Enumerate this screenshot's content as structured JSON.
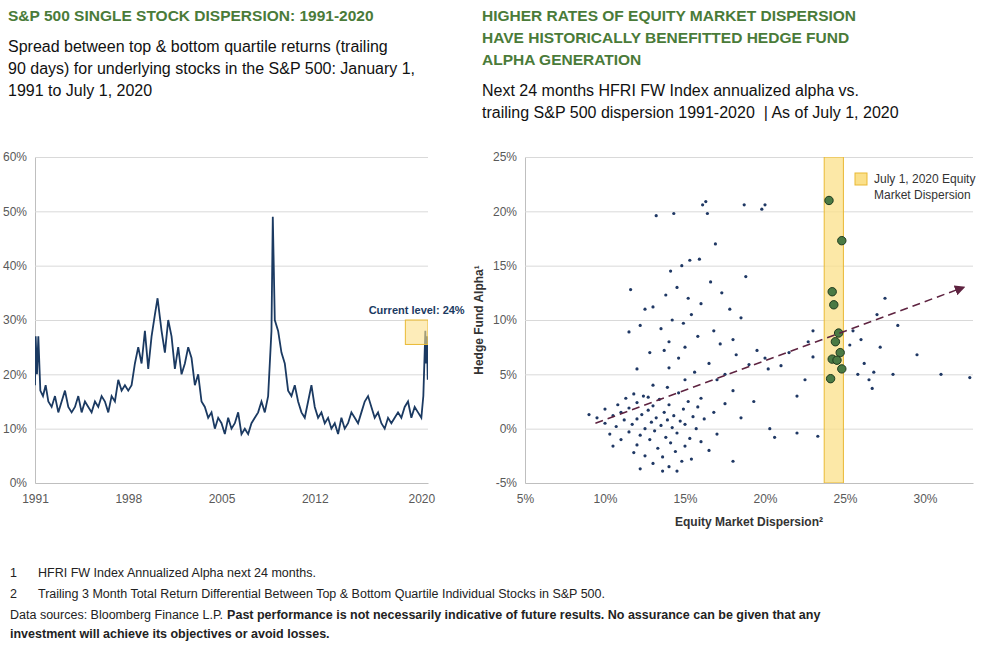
{
  "chart_data": [
    {
      "type": "line",
      "title": [
        "S&P 500 SINGLE STOCK DISPERSION: 1991-2020"
      ],
      "subtitle": [
        "Spread between top & bottom quartile returns (trailing",
        "90 days) for underlying stocks in the S&P 500: January 1,",
        "1991 to July 1, 2020"
      ],
      "color": "#1b3a62",
      "grid": true,
      "xlim": [
        1991,
        2020.5
      ],
      "xticks": [
        1991,
        1998,
        2005,
        2012,
        2020
      ],
      "ylim": [
        0,
        60
      ],
      "yticks": [
        {
          "value": 0,
          "label": "0%"
        },
        {
          "value": 10,
          "label": "10%"
        },
        {
          "value": 20,
          "label": "20%"
        },
        {
          "value": 30,
          "label": "30%"
        },
        {
          "value": 40,
          "label": "40%"
        },
        {
          "value": 50,
          "label": "50%"
        },
        {
          "value": 60,
          "label": "60%"
        }
      ],
      "x": [
        1991,
        1991.05,
        1991.15,
        1991.25,
        1991.4,
        1991.6,
        1991.8,
        1992,
        1992.25,
        1992.5,
        1992.75,
        1993,
        1993.25,
        1993.5,
        1993.75,
        1994,
        1994.25,
        1994.5,
        1994.75,
        1995,
        1995.25,
        1995.5,
        1995.75,
        1996,
        1996.25,
        1996.5,
        1996.75,
        1997,
        1997.25,
        1997.5,
        1997.75,
        1998,
        1998.25,
        1998.5,
        1998.75,
        1999,
        1999.25,
        1999.5,
        1999.75,
        2000,
        2000.2,
        2000.5,
        2000.75,
        2001,
        2001.25,
        2001.5,
        2001.75,
        2002,
        2002.25,
        2002.5,
        2002.75,
        2003,
        2003.25,
        2003.5,
        2003.75,
        2004,
        2004.25,
        2004.5,
        2004.75,
        2005,
        2005.25,
        2005.5,
        2005.75,
        2006,
        2006.25,
        2006.5,
        2006.75,
        2007,
        2007.25,
        2007.5,
        2007.75,
        2008,
        2008.25,
        2008.5,
        2008.75,
        2008.85,
        2009,
        2009.25,
        2009.5,
        2009.75,
        2010,
        2010.25,
        2010.5,
        2010.75,
        2011,
        2011.25,
        2011.5,
        2011.75,
        2012,
        2012.25,
        2012.5,
        2012.75,
        2013,
        2013.25,
        2013.5,
        2013.75,
        2014,
        2014.25,
        2014.5,
        2014.75,
        2015,
        2015.25,
        2015.5,
        2015.75,
        2016,
        2016.25,
        2016.5,
        2016.75,
        2017,
        2017.25,
        2017.5,
        2017.75,
        2018,
        2018.25,
        2018.5,
        2018.75,
        2019,
        2019.25,
        2019.5,
        2019.75,
        2020,
        2020.15,
        2020.3,
        2020.35,
        2020.42,
        2020.48,
        2020.5
      ],
      "values": [
        18,
        27,
        20,
        27,
        17,
        16,
        18,
        15,
        14,
        16,
        13,
        15,
        17,
        14,
        13,
        14,
        16,
        13,
        15,
        14,
        13,
        15,
        14,
        16,
        15,
        13,
        16,
        15,
        19,
        17,
        18,
        17,
        18,
        22,
        25,
        22,
        28,
        21,
        27,
        31,
        34,
        28,
        24,
        30,
        27,
        21,
        25,
        20,
        22,
        25,
        23,
        18,
        20,
        15,
        14,
        12,
        13,
        10,
        12,
        11,
        9,
        12,
        10,
        11,
        13,
        9,
        10,
        9,
        11,
        12,
        13,
        15,
        13,
        16,
        28,
        49,
        30,
        28,
        24,
        22,
        17,
        16,
        18,
        15,
        13,
        12,
        15,
        18,
        14,
        12,
        13,
        11,
        12,
        10,
        11,
        9,
        12,
        10,
        11,
        13,
        12,
        11,
        13,
        15,
        16,
        14,
        12,
        13,
        11,
        10,
        12,
        11,
        12,
        13,
        12,
        14,
        15,
        12,
        14,
        13,
        12,
        16,
        28,
        22,
        27,
        19,
        24
      ],
      "highlight": {
        "x": [
          2018.8,
          2020.5
        ],
        "y": [
          25.5,
          30
        ],
        "color": "#fbe08a"
      },
      "annotation": "Current level: 24%"
    },
    {
      "type": "scatter",
      "title": [
        "HIGHER RATES OF EQUITY MARKET DISPERSION",
        "HAVE HISTORICALLY BENEFITTED HEDGE FUND",
        "ALPHA GENERATION"
      ],
      "subtitle": [
        "Next 24 months HFRI FW Index annualized alpha vs.",
        "trailing S&P 500 dispersion 1991-2020  | As of July 1, 2020"
      ],
      "x_label": "Equity Market Dispersion²",
      "y_label": "Hedge Fund Alpha¹",
      "grid": true,
      "legend": "top-right",
      "xlim": [
        5,
        33
      ],
      "xticks": [
        {
          "value": 5,
          "label": "5%"
        },
        {
          "value": 10,
          "label": "10%"
        },
        {
          "value": 15,
          "label": "15%"
        },
        {
          "value": 20,
          "label": "20%"
        },
        {
          "value": 25,
          "label": "25%"
        },
        {
          "value": 30,
          "label": "30%"
        }
      ],
      "ylim": [
        -5,
        25
      ],
      "yticks": [
        {
          "value": -5,
          "label": "-5%"
        },
        {
          "value": 0,
          "label": "0%"
        },
        {
          "value": 5,
          "label": "5%"
        },
        {
          "value": 10,
          "label": "10%"
        },
        {
          "value": 15,
          "label": "15%"
        },
        {
          "value": 20,
          "label": "20%"
        },
        {
          "value": 25,
          "label": "25%"
        }
      ],
      "highlight": {
        "label": [
          "July 1, 2020 Equity",
          "Market Dispersion"
        ],
        "x": [
          23.7,
          24.9
        ],
        "color": "#fbe08a"
      },
      "series": [
        {
          "type": "scatter",
          "marker": "dot",
          "color": "#1f3864",
          "x": [
            9,
            9.5,
            10,
            10,
            10.3,
            10.5,
            10.7,
            10.8,
            11,
            11,
            11.2,
            11.3,
            11.5,
            11.5,
            11.7,
            11.8,
            12,
            12,
            12,
            12.2,
            12.3,
            12.4,
            12.5,
            12.5,
            12.7,
            12.8,
            12.9,
            13,
            13,
            13.1,
            13.2,
            13.3,
            13.4,
            13.5,
            13.6,
            13.7,
            13.8,
            13.9,
            14,
            14,
            14.1,
            14.2,
            14.3,
            14.4,
            14.5,
            14.6,
            14.7,
            14.8,
            14.9,
            15,
            15,
            15.2,
            15.3,
            15.4,
            15.5,
            15.7,
            15.8,
            16,
            16.2,
            16.5,
            16.8,
            17,
            17.5,
            18,
            18.5,
            13.6,
            12.2,
            14.5,
            11.8,
            10.5,
            11.5,
            11.6,
            12,
            12.2,
            12.5,
            12.8,
            13,
            13,
            13.2,
            13.5,
            13.7,
            13.8,
            14,
            14,
            14.2,
            14.3,
            14.5,
            14.6,
            14.8,
            14.9,
            15,
            15,
            15.2,
            15.3,
            15.4,
            15.6,
            15.8,
            15.9,
            16,
            16,
            16.1,
            16.3,
            16.4,
            16.5,
            16.6,
            16.8,
            17,
            17.2,
            17.5,
            17.8,
            18,
            18,
            18.2,
            18.5,
            18.7,
            19,
            19.5,
            19.8,
            20,
            20,
            20.2,
            20.3,
            20.6,
            19.3,
            18.8,
            17.3,
            16.9,
            14.1,
            12.7,
            13.9,
            21,
            21.5,
            22,
            22,
            22.5,
            23,
            23.3,
            23,
            25.3,
            25.5,
            25.8,
            26,
            26.2,
            26.5,
            26.7,
            26.8,
            27,
            27.5,
            27.2,
            28,
            28.3,
            29.5,
            31,
            32.8,
            22.7
          ],
          "values": [
            1.3,
            1,
            0.5,
            1.8,
            -0.5,
            1.2,
            0.2,
            2.2,
            -1,
            1.5,
            0.8,
            2.8,
            -0.3,
            1.9,
            0.4,
            3.2,
            -1.5,
            0.9,
            2.4,
            -0.6,
            1.3,
            3,
            0,
            -2.5,
            1.7,
            -1,
            0.6,
            2.1,
            -3.2,
            -0.2,
            1,
            -1.8,
            2.7,
            0.3,
            -2.6,
            1.5,
            -0.8,
            0.8,
            -3.5,
            2.2,
            -1.3,
            0.1,
            1.2,
            -2.1,
            -0.4,
            3.3,
            0.7,
            -3,
            1.8,
            -1.6,
            0.4,
            2.5,
            -0.9,
            -2.8,
            1.1,
            0,
            2,
            -1.2,
            0.9,
            -2,
            1.5,
            -0.5,
            2.3,
            -3,
            1,
            -3.9,
            -3.7,
            -3.9,
            -2.2,
            -1.6,
            8.9,
            12.8,
            5.5,
            9.5,
            11,
            7,
            11.2,
            4,
            19.6,
            9.2,
            7.2,
            12.3,
            5.6,
            8,
            10,
            19.8,
            13,
            6.5,
            15,
            9.7,
            4.5,
            7.5,
            12,
            15.5,
            10.5,
            5.2,
            8.5,
            15.6,
            11.5,
            2.8,
            20.6,
            20.9,
            19.8,
            6,
            13.5,
            9,
            4.5,
            7.8,
            5,
            11,
            8.2,
            3.5,
            6.8,
            10.2,
            20.6,
            5.9,
            7.2,
            20.2,
            6.5,
            20.6,
            5.5,
            0,
            -0.8,
            2.5,
            14,
            12.5,
            17,
            14.5,
            2.9,
            3.8,
            5.8,
            7,
            3,
            -0.4,
            4.5,
            9,
            -0.7,
            6.6,
            7.7,
            9,
            5,
            8.2,
            6,
            4.5,
            3.7,
            5.2,
            10.5,
            12,
            7.5,
            5,
            9.5,
            6.8,
            5,
            4.7,
            8
          ]
        },
        {
          "type": "scatter",
          "marker": "circle",
          "color": "#4a7a44",
          "x": [
            24,
            24.8,
            24.2,
            24.3,
            24.6,
            24.4,
            24.7,
            24.2,
            24.5,
            24.8,
            24.1
          ],
          "values": [
            21,
            17.3,
            12.6,
            11.4,
            8.8,
            8,
            7,
            6.4,
            6.3,
            5.5,
            4.6
          ]
        },
        {
          "type": "line",
          "line_style": "dashed",
          "marker": "arrow",
          "color": "#5e2340",
          "x": [
            9.4,
            32.4
          ],
          "values": [
            0.5,
            13
          ]
        }
      ]
    }
  ],
  "footnotes": [
    {
      "number": 1,
      "text": "HFRI FW Index Annualized Alpha next 24 months."
    },
    {
      "number": 2,
      "text": "Trailing 3 Month Total Return Differential Between Top & Bottom Quartile Individual Stocks in S&P 500."
    }
  ],
  "source": "Data sources: Bloomberg Finance L.P.",
  "disclaimer": [
    "Past performance is not necessarily indicative of future results. No assurance can be given that any",
    "investment will achieve its objectives or avoid losses."
  ]
}
